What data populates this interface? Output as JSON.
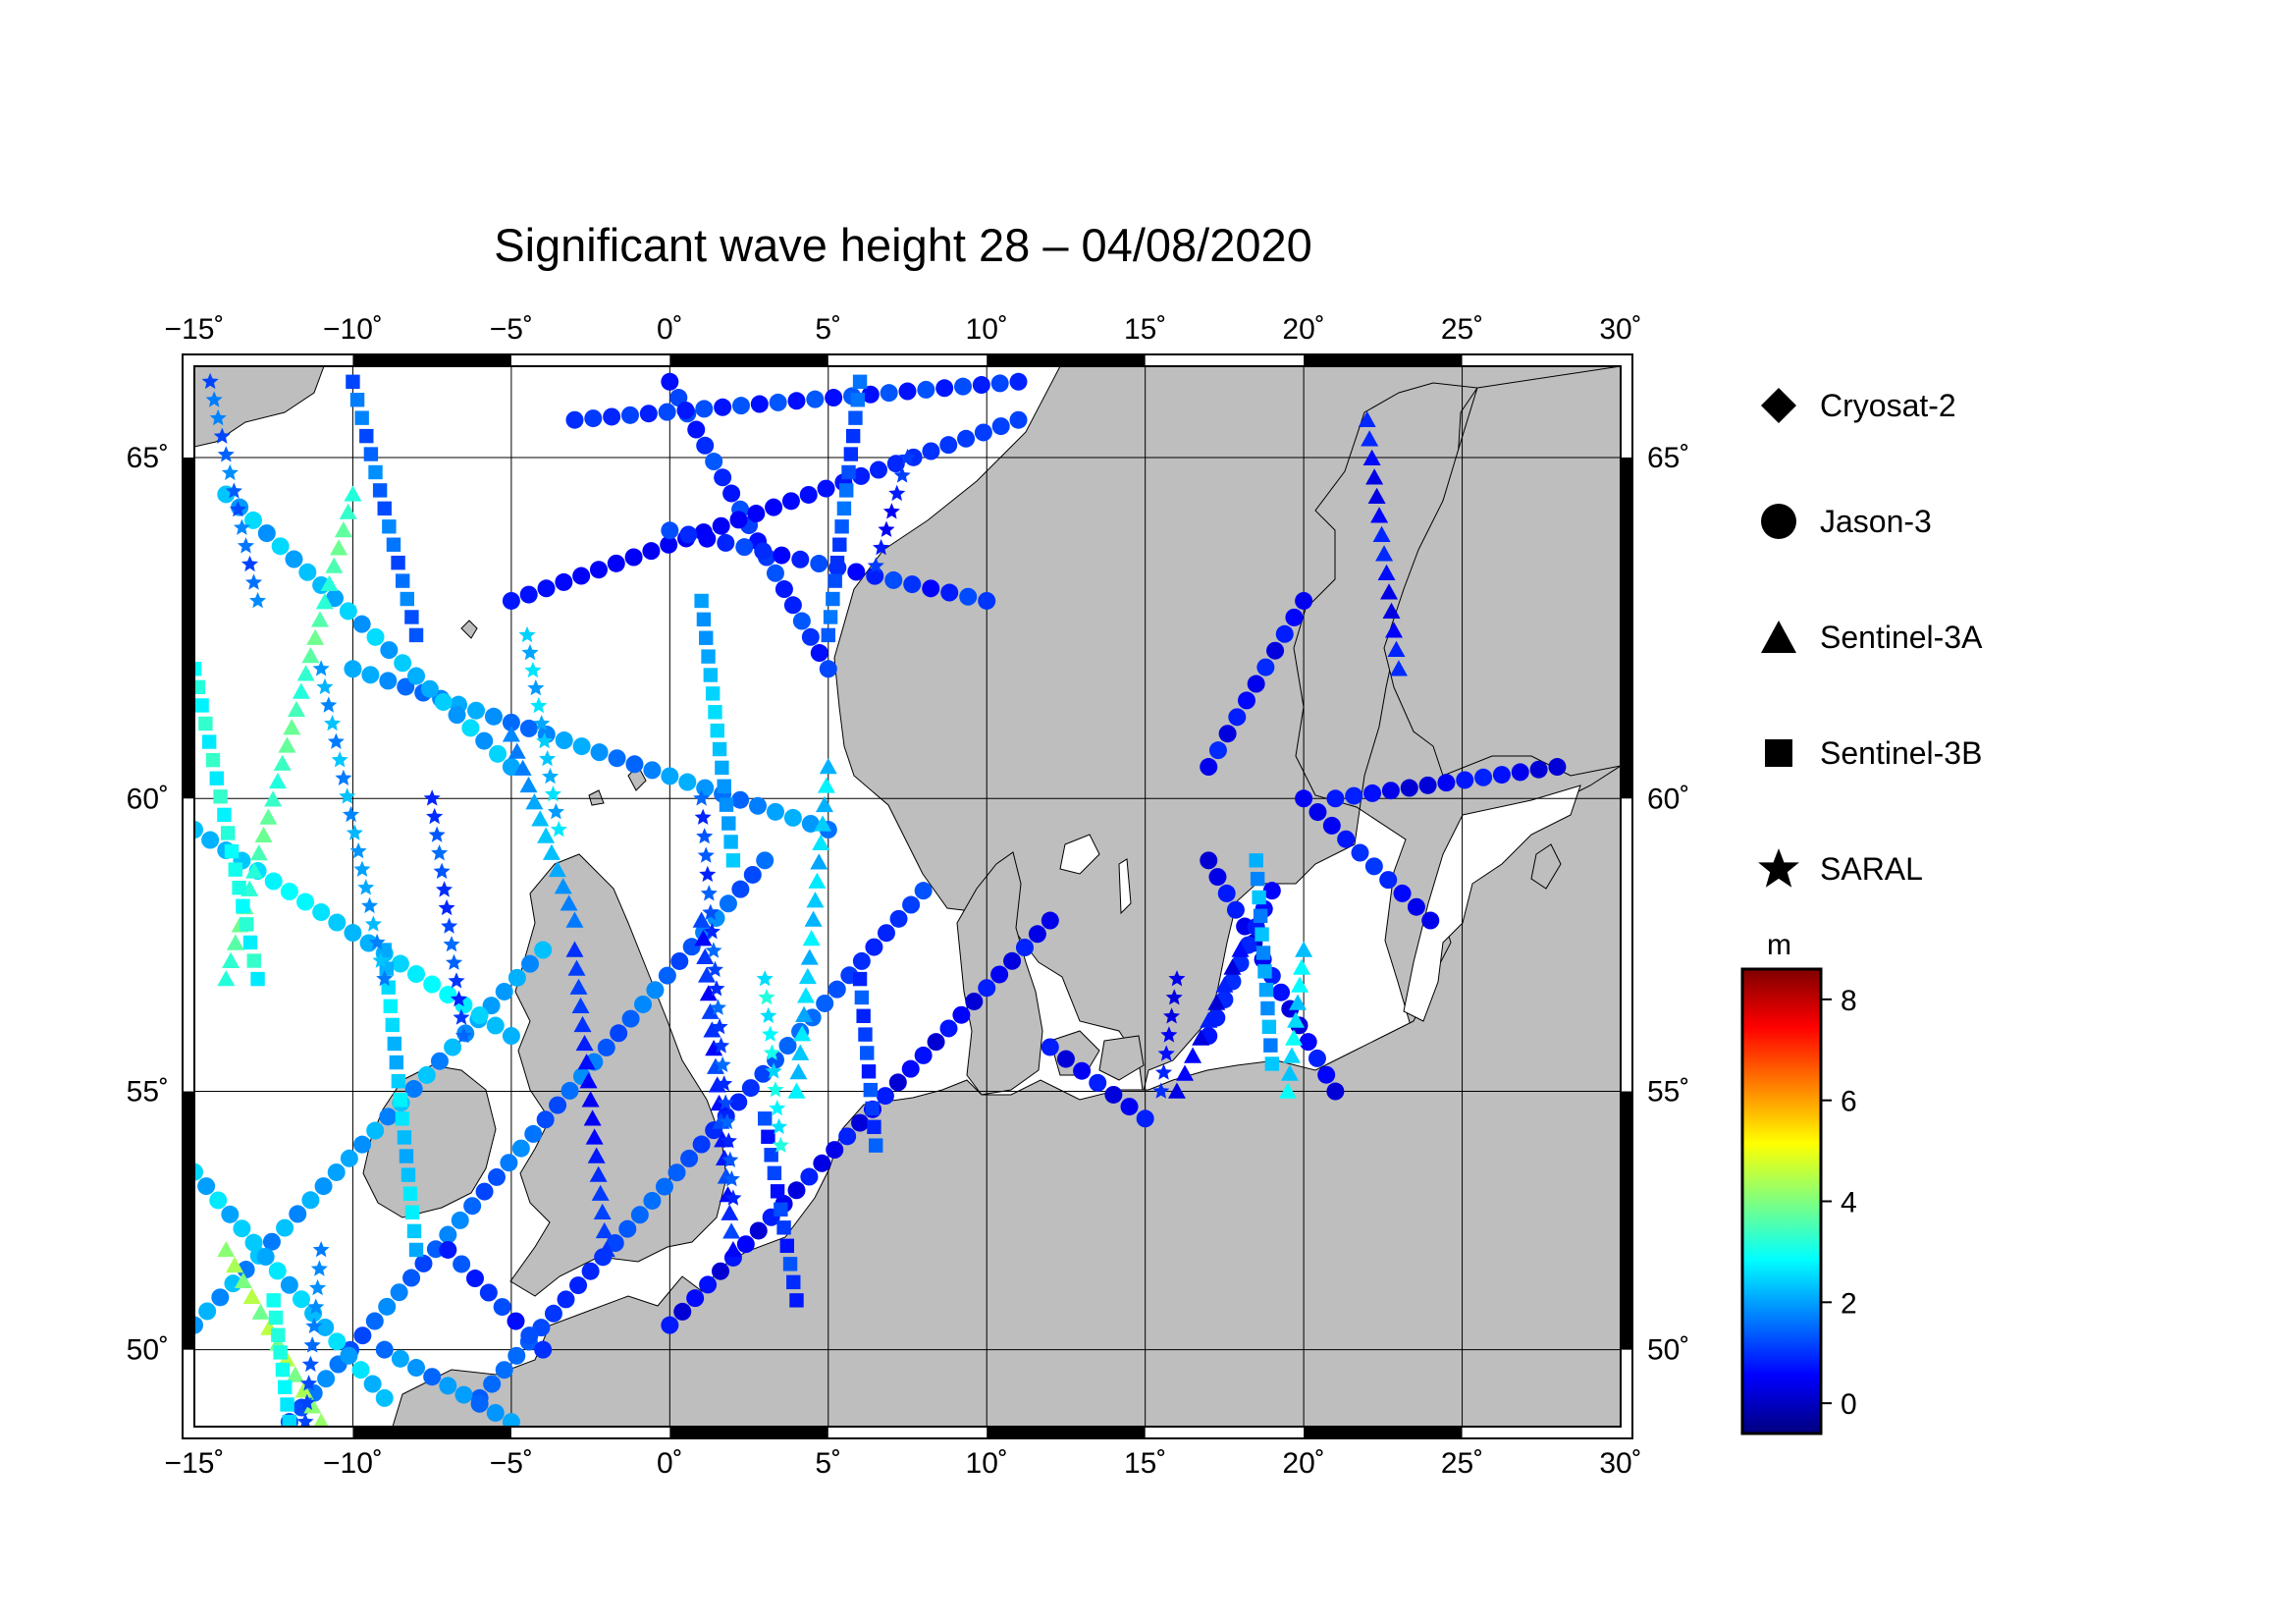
{
  "title": "Significant wave height 28 – 04/08/2020",
  "map": {
    "lon_range": [
      -15,
      30
    ],
    "lat_range": [
      48.4,
      66.2
    ],
    "lon_ticks_top": [
      "−15˚",
      "−10˚",
      "−5˚",
      "0˚",
      "5˚",
      "10˚",
      "15˚",
      "20˚",
      "25˚",
      "30˚"
    ],
    "lon_ticks_bottom": [
      "−15˚",
      "−10˚",
      "−5˚",
      "0˚",
      "5˚",
      "10˚",
      "15˚",
      "20˚",
      "25˚",
      "30˚"
    ],
    "lat_ticks_left": [
      "65˚",
      "60˚",
      "55˚",
      "50˚"
    ],
    "lat_ticks_right": [
      "65˚",
      "60˚",
      "55˚",
      "50˚"
    ],
    "land_color": "#bebebe",
    "sea_color": "#ffffff"
  },
  "legend": {
    "items": [
      {
        "label": "Cryosat-2",
        "icon": "diamond-icon"
      },
      {
        "label": "Jason-3",
        "icon": "circle-icon"
      },
      {
        "label": "Sentinel-3A",
        "icon": "triangle-icon"
      },
      {
        "label": "Sentinel-3B",
        "icon": "square-icon"
      },
      {
        "label": "SARAL",
        "icon": "star-icon"
      }
    ]
  },
  "colorbar": {
    "unit": "m",
    "ticks": [
      "0",
      "2",
      "4",
      "6",
      "8"
    ],
    "range": [
      -0.6,
      8.6
    ],
    "colors": [
      "#00007f",
      "#0000ff",
      "#007fff",
      "#00ffff",
      "#7fff7f",
      "#ffff00",
      "#ff7f00",
      "#ff0000",
      "#7f0000"
    ]
  },
  "chart_data": {
    "type": "scatter",
    "title": "Significant wave height 28 – 04/08/2020",
    "xlim": [
      -15,
      30
    ],
    "ylim": [
      48.4,
      66.2
    ],
    "value_unit": "m",
    "series": [
      {
        "name": "Jason-3",
        "marker": "circle",
        "tracks": [
          {
            "from": [
              -15,
              50.5
            ],
            "to": [
              -4,
              57.5
            ],
            "v": 2.0
          },
          {
            "from": [
              -12,
              48.5
            ],
            "to": [
              3,
              59
            ],
            "v": 1.5
          },
          {
            "from": [
              -6,
              49
            ],
            "to": [
              8,
              58.5
            ],
            "v": 1.2
          },
          {
            "from": [
              0,
              50.5
            ],
            "to": [
              12,
              58
            ],
            "v": 0.5
          },
          {
            "from": [
              -7,
              52
            ],
            "to": [
              -4,
              50
            ],
            "v": 1.0
          },
          {
            "from": [
              -15,
              59.5
            ],
            "to": [
              -5,
              56
            ],
            "v": 2.5
          },
          {
            "from": [
              -10,
              62
            ],
            "to": [
              5,
              59.5
            ],
            "v": 1.8
          },
          {
            "from": [
              -14,
              64.5
            ],
            "to": [
              -5,
              60.5
            ],
            "v": 2.2
          },
          {
            "from": [
              0,
              66
            ],
            "to": [
              5,
              62
            ],
            "v": 1.0
          },
          {
            "from": [
              -5,
              63
            ],
            "to": [
              11,
              65.5
            ],
            "v": 0.8
          },
          {
            "from": [
              0,
              64
            ],
            "to": [
              10,
              63
            ],
            "v": 0.9
          },
          {
            "from": [
              -3,
              65.5
            ],
            "to": [
              11,
              66
            ],
            "v": 1.0
          },
          {
            "from": [
              17,
              59
            ],
            "to": [
              21,
              55
            ],
            "v": 0.5
          },
          {
            "from": [
              17,
              56
            ],
            "to": [
              19,
              58.5
            ],
            "v": 0.6
          },
          {
            "from": [
              12,
              55.8
            ],
            "to": [
              15,
              54.5
            ],
            "v": 0.5
          },
          {
            "from": [
              17,
              60.5
            ],
            "to": [
              20,
              63
            ],
            "v": 0.6
          },
          {
            "from": [
              20,
              60
            ],
            "to": [
              24,
              58
            ],
            "v": 0.7
          },
          {
            "from": [
              21,
              60
            ],
            "to": [
              28,
              60.5
            ],
            "v": 0.5
          },
          {
            "from": [
              -15,
              53.5
            ],
            "to": [
              -9,
              49
            ],
            "v": 2.3
          },
          {
            "from": [
              -9,
              50
            ],
            "to": [
              -5,
              48.5
            ],
            "v": 1.8
          }
        ]
      },
      {
        "name": "Sentinel-3A",
        "marker": "triangle",
        "tracks": [
          {
            "from": [
              -14,
              52
            ],
            "to": [
              -11,
              48.5
            ],
            "v": 4.2
          },
          {
            "from": [
              -14,
              57
            ],
            "to": [
              -10,
              64.5
            ],
            "v": 3.5
          },
          {
            "from": [
              -3,
              57.5
            ],
            "to": [
              -2,
              52
            ],
            "v": 0.8
          },
          {
            "from": [
              1,
              58
            ],
            "to": [
              2,
              52
            ],
            "v": 0.9
          },
          {
            "from": [
              5,
              60.5
            ],
            "to": [
              4,
              55
            ],
            "v": 2.4
          },
          {
            "from": [
              -5,
              61
            ],
            "to": [
              -3,
              58
            ],
            "v": 2.0
          },
          {
            "from": [
              22,
              65.5
            ],
            "to": [
              23,
              62
            ],
            "v": 0.6
          },
          {
            "from": [
              18,
              57.5
            ],
            "to": [
              16,
              55
            ],
            "v": 0.5
          },
          {
            "from": [
              20,
              57.5
            ],
            "to": [
              19.5,
              55
            ],
            "v": 2.6
          }
        ]
      },
      {
        "name": "Sentinel-3B",
        "marker": "square",
        "tracks": [
          {
            "from": [
              -15,
              62
            ],
            "to": [
              -13,
              57
            ],
            "v": 3.0
          },
          {
            "from": [
              -9,
              57.5
            ],
            "to": [
              -8,
              52
            ],
            "v": 2.4
          },
          {
            "from": [
              -12.5,
              51
            ],
            "to": [
              -12,
              48.5
            ],
            "v": 2.8
          },
          {
            "from": [
              3,
              54.5
            ],
            "to": [
              4,
              51
            ],
            "v": 1.0
          },
          {
            "from": [
              6,
              57
            ],
            "to": [
              6.5,
              54
            ],
            "v": 1.1
          },
          {
            "from": [
              1,
              63
            ],
            "to": [
              2,
              59
            ],
            "v": 2.2
          },
          {
            "from": [
              6,
              66
            ],
            "to": [
              5,
              62.5
            ],
            "v": 1.3
          },
          {
            "from": [
              18.5,
              59
            ],
            "to": [
              19,
              55.5
            ],
            "v": 2.0
          },
          {
            "from": [
              -10,
              66
            ],
            "to": [
              -8,
              62.5
            ],
            "v": 1.5
          }
        ]
      },
      {
        "name": "SARAL",
        "marker": "star",
        "tracks": [
          {
            "from": [
              -11,
              62
            ],
            "to": [
              -9,
              57
            ],
            "v": 2.0
          },
          {
            "from": [
              -7.5,
              60
            ],
            "to": [
              -6.5,
              56
            ],
            "v": 1.2
          },
          {
            "from": [
              -11,
              52
            ],
            "to": [
              -11.5,
              48.5
            ],
            "v": 1.5
          },
          {
            "from": [
              1,
              60
            ],
            "to": [
              2,
              53
            ],
            "v": 1.2
          },
          {
            "from": [
              3,
              57
            ],
            "to": [
              3.5,
              54
            ],
            "v": 2.8
          },
          {
            "from": [
              16,
              57
            ],
            "to": [
              15.5,
              55
            ],
            "v": 0.6
          },
          {
            "from": [
              7.5,
              65
            ],
            "to": [
              6.5,
              63.5
            ],
            "v": 0.8
          },
          {
            "from": [
              -4.5,
              62.5
            ],
            "to": [
              -3.5,
              59.5
            ],
            "v": 2.3
          },
          {
            "from": [
              -14.5,
              66
            ],
            "to": [
              -13,
              63
            ],
            "v": 1.5
          }
        ]
      },
      {
        "name": "Cryosat-2",
        "marker": "diamond",
        "tracks": []
      }
    ]
  }
}
